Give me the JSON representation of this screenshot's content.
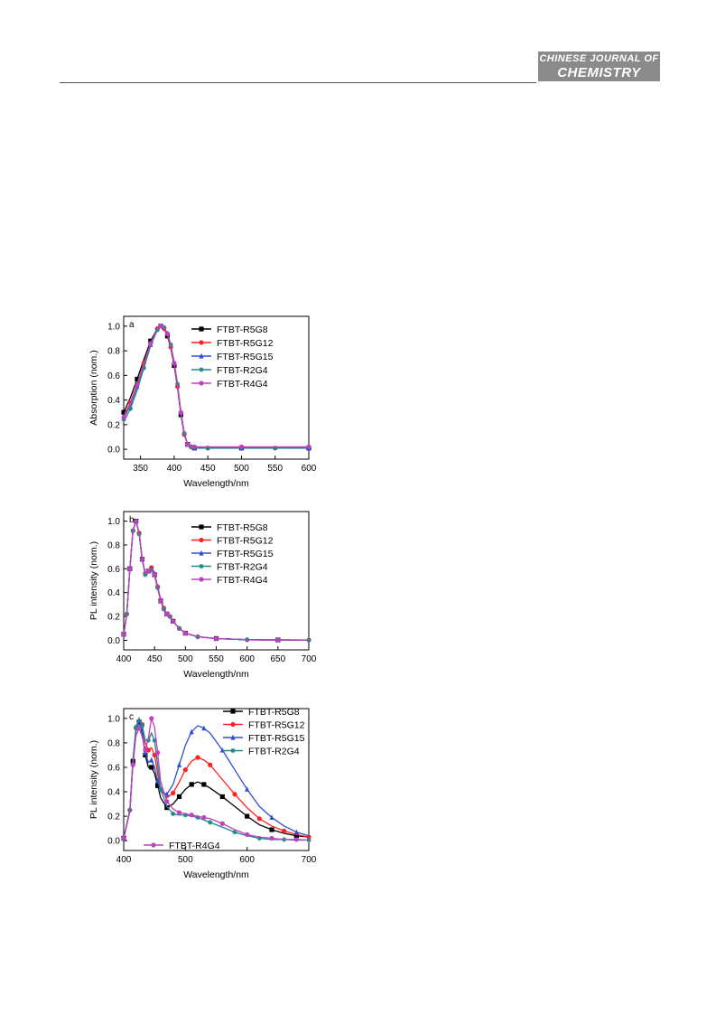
{
  "header": {
    "journal_line1": "CHINESE JOURNAL OF",
    "journal_line2": "CHEMISTRY"
  },
  "chart_data": [
    {
      "type": "line",
      "panel_label": "a",
      "xlabel": "Wavelength/nm",
      "ylabel": "Absorption (nom.)",
      "xlim": [
        325,
        600
      ],
      "ylim": [
        -0.08,
        1.08
      ],
      "xticks": [
        350,
        400,
        450,
        500,
        550,
        600
      ],
      "yticks": [
        0.0,
        0.2,
        0.4,
        0.6,
        0.8,
        1.0
      ],
      "x": [
        325,
        335,
        345,
        355,
        365,
        375,
        380,
        385,
        390,
        395,
        400,
        405,
        410,
        415,
        420,
        425,
        430,
        450,
        500,
        550,
        600
      ],
      "series": [
        {
          "name": "FTBT-R5G8",
          "color": "#000000",
          "marker": "square",
          "values": [
            0.3,
            0.42,
            0.57,
            0.73,
            0.88,
            0.98,
            1.0,
            0.98,
            0.92,
            0.82,
            0.68,
            0.5,
            0.28,
            0.12,
            0.04,
            0.02,
            0.01,
            0.01,
            0.01,
            0.01,
            0.01
          ]
        },
        {
          "name": "FTBT-R5G12",
          "color": "#ff2020",
          "marker": "circle",
          "values": [
            0.27,
            0.38,
            0.53,
            0.7,
            0.86,
            0.98,
            1.0,
            0.98,
            0.93,
            0.83,
            0.69,
            0.51,
            0.29,
            0.12,
            0.04,
            0.02,
            0.01,
            0.01,
            0.01,
            0.01,
            0.01
          ]
        },
        {
          "name": "FTBT-R5G15",
          "color": "#3050d0",
          "marker": "triangle",
          "values": [
            0.25,
            0.36,
            0.51,
            0.68,
            0.85,
            0.97,
            1.0,
            0.99,
            0.94,
            0.84,
            0.7,
            0.52,
            0.3,
            0.13,
            0.04,
            0.02,
            0.01,
            0.01,
            0.01,
            0.01,
            0.01
          ]
        },
        {
          "name": "FTBT-R2G4",
          "color": "#1a8a8a",
          "marker": "star",
          "values": [
            0.22,
            0.33,
            0.48,
            0.66,
            0.84,
            0.97,
            1.0,
            0.99,
            0.94,
            0.85,
            0.71,
            0.53,
            0.3,
            0.13,
            0.04,
            0.02,
            0.01,
            0.01,
            0.01,
            0.01,
            0.01
          ]
        },
        {
          "name": "FTBT-R4G4",
          "color": "#c040c0",
          "marker": "circle",
          "values": [
            0.26,
            0.37,
            0.52,
            0.69,
            0.86,
            0.98,
            1.0,
            0.99,
            0.94,
            0.84,
            0.7,
            0.52,
            0.3,
            0.13,
            0.04,
            0.02,
            0.02,
            0.02,
            0.02,
            0.02,
            0.02
          ]
        }
      ]
    },
    {
      "type": "line",
      "panel_label": "b",
      "xlabel": "Wavelength/nm",
      "ylabel": "PL intensity (nom.)",
      "xlim": [
        400,
        700
      ],
      "ylim": [
        -0.08,
        1.08
      ],
      "xticks": [
        400,
        450,
        500,
        550,
        600,
        650,
        700
      ],
      "yticks": [
        0.0,
        0.2,
        0.4,
        0.6,
        0.8,
        1.0
      ],
      "x": [
        400,
        405,
        410,
        415,
        420,
        425,
        430,
        435,
        440,
        445,
        450,
        455,
        460,
        465,
        470,
        475,
        480,
        490,
        500,
        520,
        550,
        600,
        650,
        700
      ],
      "series": [
        {
          "name": "FTBT-R5G8",
          "color": "#000000",
          "marker": "square",
          "values": [
            0.05,
            0.22,
            0.6,
            0.92,
            1.0,
            0.9,
            0.68,
            0.56,
            0.58,
            0.6,
            0.55,
            0.44,
            0.33,
            0.26,
            0.22,
            0.2,
            0.16,
            0.1,
            0.06,
            0.03,
            0.015,
            0.005,
            0.003,
            0.002
          ]
        },
        {
          "name": "FTBT-R5G12",
          "color": "#ff2020",
          "marker": "circle",
          "values": [
            0.05,
            0.22,
            0.6,
            0.92,
            1.0,
            0.9,
            0.68,
            0.56,
            0.58,
            0.61,
            0.56,
            0.45,
            0.34,
            0.27,
            0.22,
            0.2,
            0.16,
            0.1,
            0.06,
            0.03,
            0.015,
            0.005,
            0.003,
            0.002
          ]
        },
        {
          "name": "FTBT-R5G15",
          "color": "#3050d0",
          "marker": "triangle",
          "values": [
            0.05,
            0.22,
            0.6,
            0.92,
            1.0,
            0.9,
            0.68,
            0.56,
            0.58,
            0.61,
            0.56,
            0.45,
            0.34,
            0.27,
            0.22,
            0.2,
            0.16,
            0.1,
            0.06,
            0.03,
            0.015,
            0.005,
            0.003,
            0.002
          ]
        },
        {
          "name": "FTBT-R2G4",
          "color": "#1a8a8a",
          "marker": "star",
          "values": [
            0.05,
            0.22,
            0.6,
            0.92,
            1.0,
            0.89,
            0.67,
            0.55,
            0.57,
            0.59,
            0.54,
            0.44,
            0.33,
            0.26,
            0.22,
            0.2,
            0.16,
            0.1,
            0.06,
            0.03,
            0.015,
            0.005,
            0.003,
            0.002
          ]
        },
        {
          "name": "FTBT-R4G4",
          "color": "#c040c0",
          "marker": "circle",
          "values": [
            0.05,
            0.22,
            0.6,
            0.92,
            1.0,
            0.9,
            0.68,
            0.56,
            0.58,
            0.6,
            0.55,
            0.44,
            0.33,
            0.26,
            0.22,
            0.2,
            0.16,
            0.1,
            0.06,
            0.03,
            0.015,
            0.005,
            0.003,
            0.002
          ]
        }
      ]
    },
    {
      "type": "line",
      "panel_label": "c",
      "xlabel": "Wavelength/nm",
      "ylabel": "PL intensity (nom.)",
      "xlim": [
        400,
        700
      ],
      "ylim": [
        -0.08,
        1.08
      ],
      "xticks": [
        400,
        500,
        600,
        700
      ],
      "yticks": [
        0.0,
        0.2,
        0.4,
        0.6,
        0.8,
        1.0
      ],
      "x": [
        400,
        410,
        415,
        420,
        425,
        430,
        435,
        440,
        445,
        450,
        455,
        460,
        470,
        480,
        490,
        500,
        510,
        520,
        530,
        540,
        560,
        580,
        600,
        620,
        640,
        660,
        680,
        700
      ],
      "series": [
        {
          "name": "FTBT-R5G8",
          "color": "#000000",
          "marker": "square",
          "values": [
            0.02,
            0.25,
            0.65,
            0.9,
            0.97,
            0.88,
            0.7,
            0.6,
            0.6,
            0.55,
            0.45,
            0.35,
            0.27,
            0.3,
            0.36,
            0.42,
            0.46,
            0.48,
            0.46,
            0.43,
            0.36,
            0.28,
            0.2,
            0.13,
            0.09,
            0.06,
            0.04,
            0.03
          ]
        },
        {
          "name": "FTBT-R5G12",
          "color": "#ff2020",
          "marker": "circle",
          "values": [
            0.02,
            0.25,
            0.66,
            0.92,
            1.0,
            0.95,
            0.8,
            0.74,
            0.76,
            0.7,
            0.55,
            0.42,
            0.35,
            0.39,
            0.48,
            0.58,
            0.65,
            0.68,
            0.66,
            0.62,
            0.5,
            0.38,
            0.27,
            0.18,
            0.12,
            0.08,
            0.05,
            0.03
          ]
        },
        {
          "name": "FTBT-R5G15",
          "color": "#3050d0",
          "marker": "triangle",
          "values": [
            0.02,
            0.24,
            0.64,
            0.9,
            0.98,
            0.9,
            0.72,
            0.64,
            0.66,
            0.6,
            0.49,
            0.4,
            0.38,
            0.46,
            0.62,
            0.78,
            0.89,
            0.94,
            0.92,
            0.88,
            0.74,
            0.58,
            0.42,
            0.28,
            0.19,
            0.12,
            0.07,
            0.04
          ]
        },
        {
          "name": "FTBT-R2G4",
          "color": "#1a8a8a",
          "marker": "star",
          "values": [
            0.02,
            0.25,
            0.66,
            0.93,
            1.0,
            0.94,
            0.82,
            0.82,
            0.88,
            0.82,
            0.62,
            0.42,
            0.28,
            0.22,
            0.21,
            0.21,
            0.2,
            0.19,
            0.17,
            0.15,
            0.11,
            0.07,
            0.04,
            0.02,
            0.01,
            0.01,
            0.005,
            0.005
          ]
        },
        {
          "name": "FTBT-R4G4",
          "color": "#c040c0",
          "marker": "circle",
          "values": [
            0.02,
            0.24,
            0.62,
            0.86,
            0.92,
            0.85,
            0.74,
            0.84,
            1.0,
            0.93,
            0.72,
            0.48,
            0.32,
            0.26,
            0.23,
            0.22,
            0.21,
            0.2,
            0.19,
            0.18,
            0.14,
            0.09,
            0.05,
            0.03,
            0.02,
            0.01,
            0.01,
            0.005
          ]
        }
      ]
    }
  ]
}
